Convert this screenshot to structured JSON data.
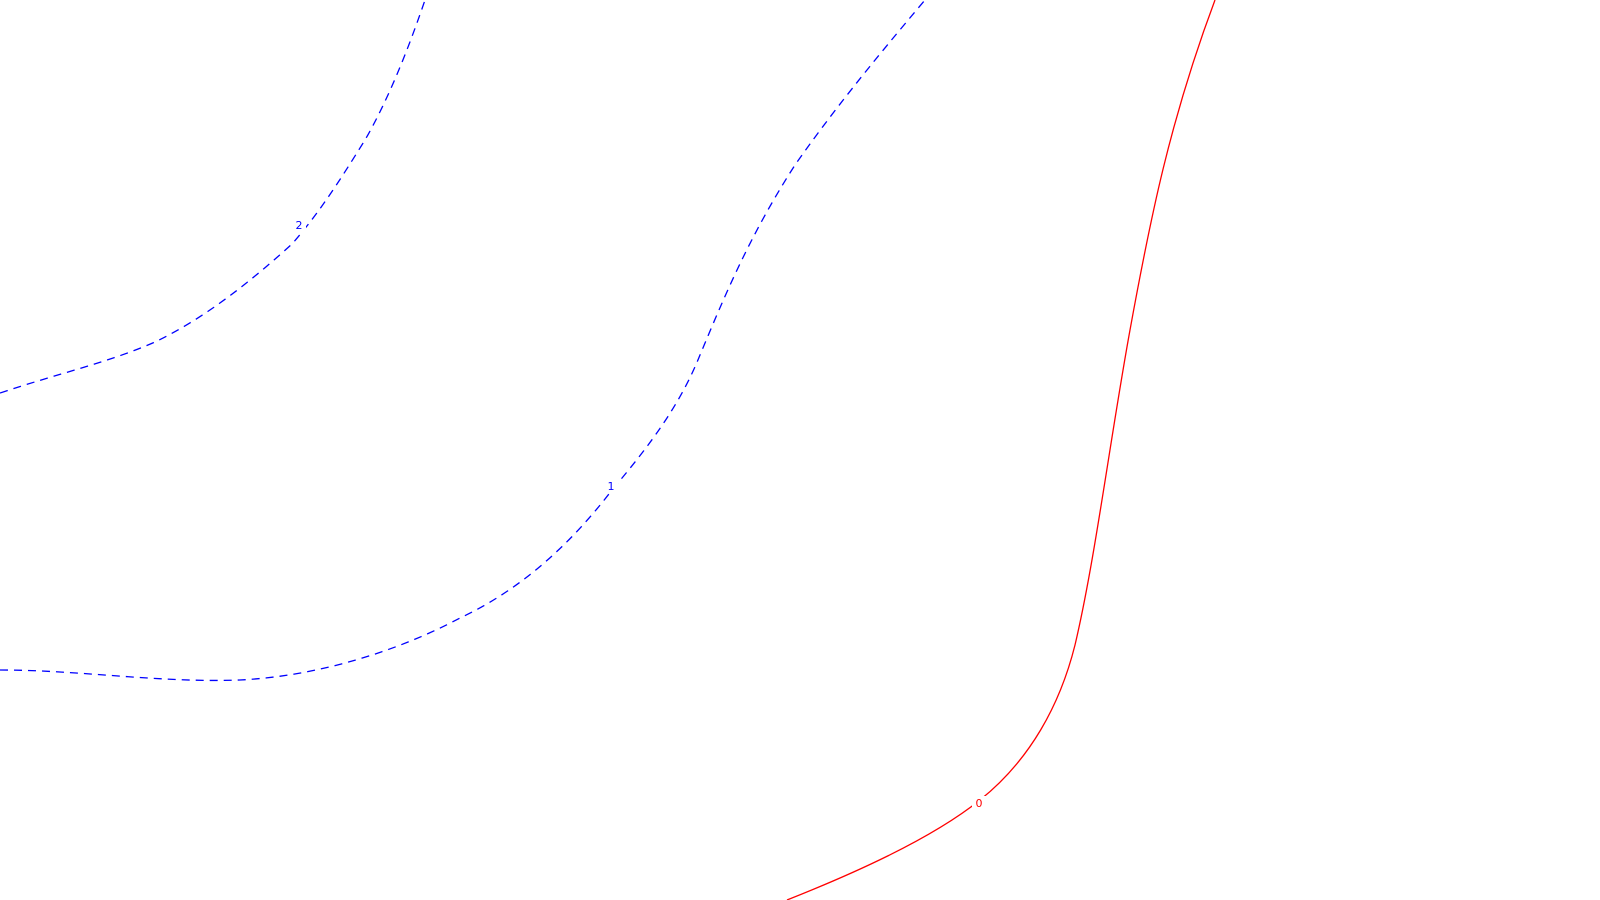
{
  "chart_data": {
    "type": "contour",
    "title": "",
    "xlabel": "",
    "ylabel": "",
    "grid": false,
    "legend": "none",
    "colors": {
      "negative": "#0000ff",
      "zero": "#ff0000",
      "background": "#ffffff"
    },
    "contours": [
      {
        "level": 2,
        "label": "2",
        "style": "dashed",
        "color": "#0000ff"
      },
      {
        "level": 1,
        "label": "1",
        "style": "dashed",
        "color": "#0000ff"
      },
      {
        "level": 0,
        "label": "0",
        "style": "solid",
        "color": "#ff0000"
      }
    ]
  }
}
